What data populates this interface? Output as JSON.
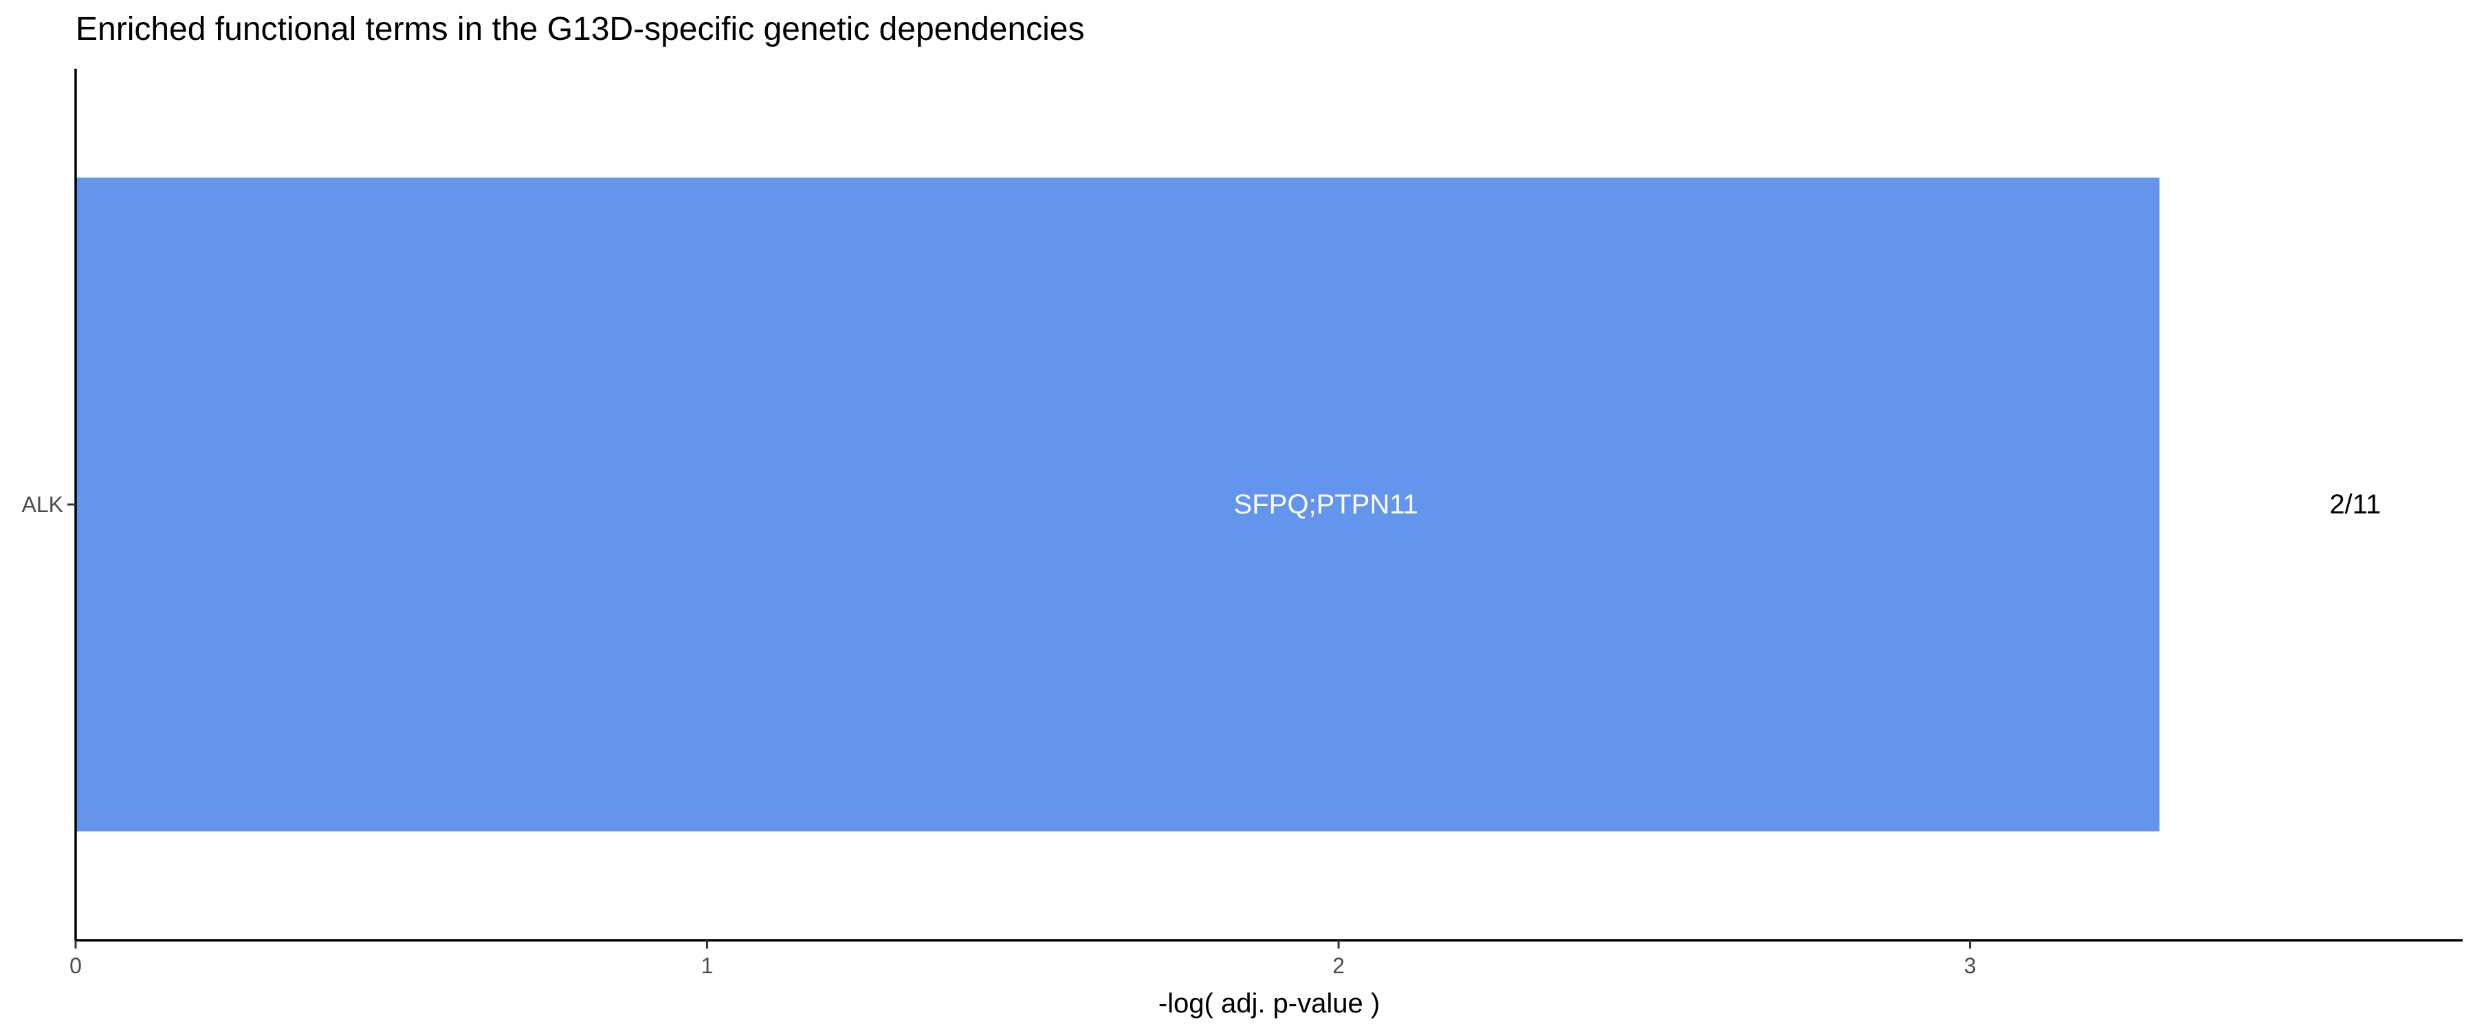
{
  "chart_data": {
    "type": "bar",
    "orientation": "horizontal",
    "title": "Enriched functional terms in the G13D-specific genetic dependencies",
    "xlabel": "-log( adj. p-value )",
    "ylabel": "",
    "xlim": [
      0,
      3.78
    ],
    "x_ticks": [
      0,
      1,
      2,
      3
    ],
    "x_tick_labels": [
      "0",
      "1",
      "2",
      "3"
    ],
    "categories": [
      "ALK"
    ],
    "values": [
      3.3
    ],
    "bar_labels": [
      "SFPQ;PTPN11"
    ],
    "ratio_labels": [
      "2/11"
    ],
    "bar_color": "#6495ED",
    "grid": false,
    "legend": "none"
  }
}
